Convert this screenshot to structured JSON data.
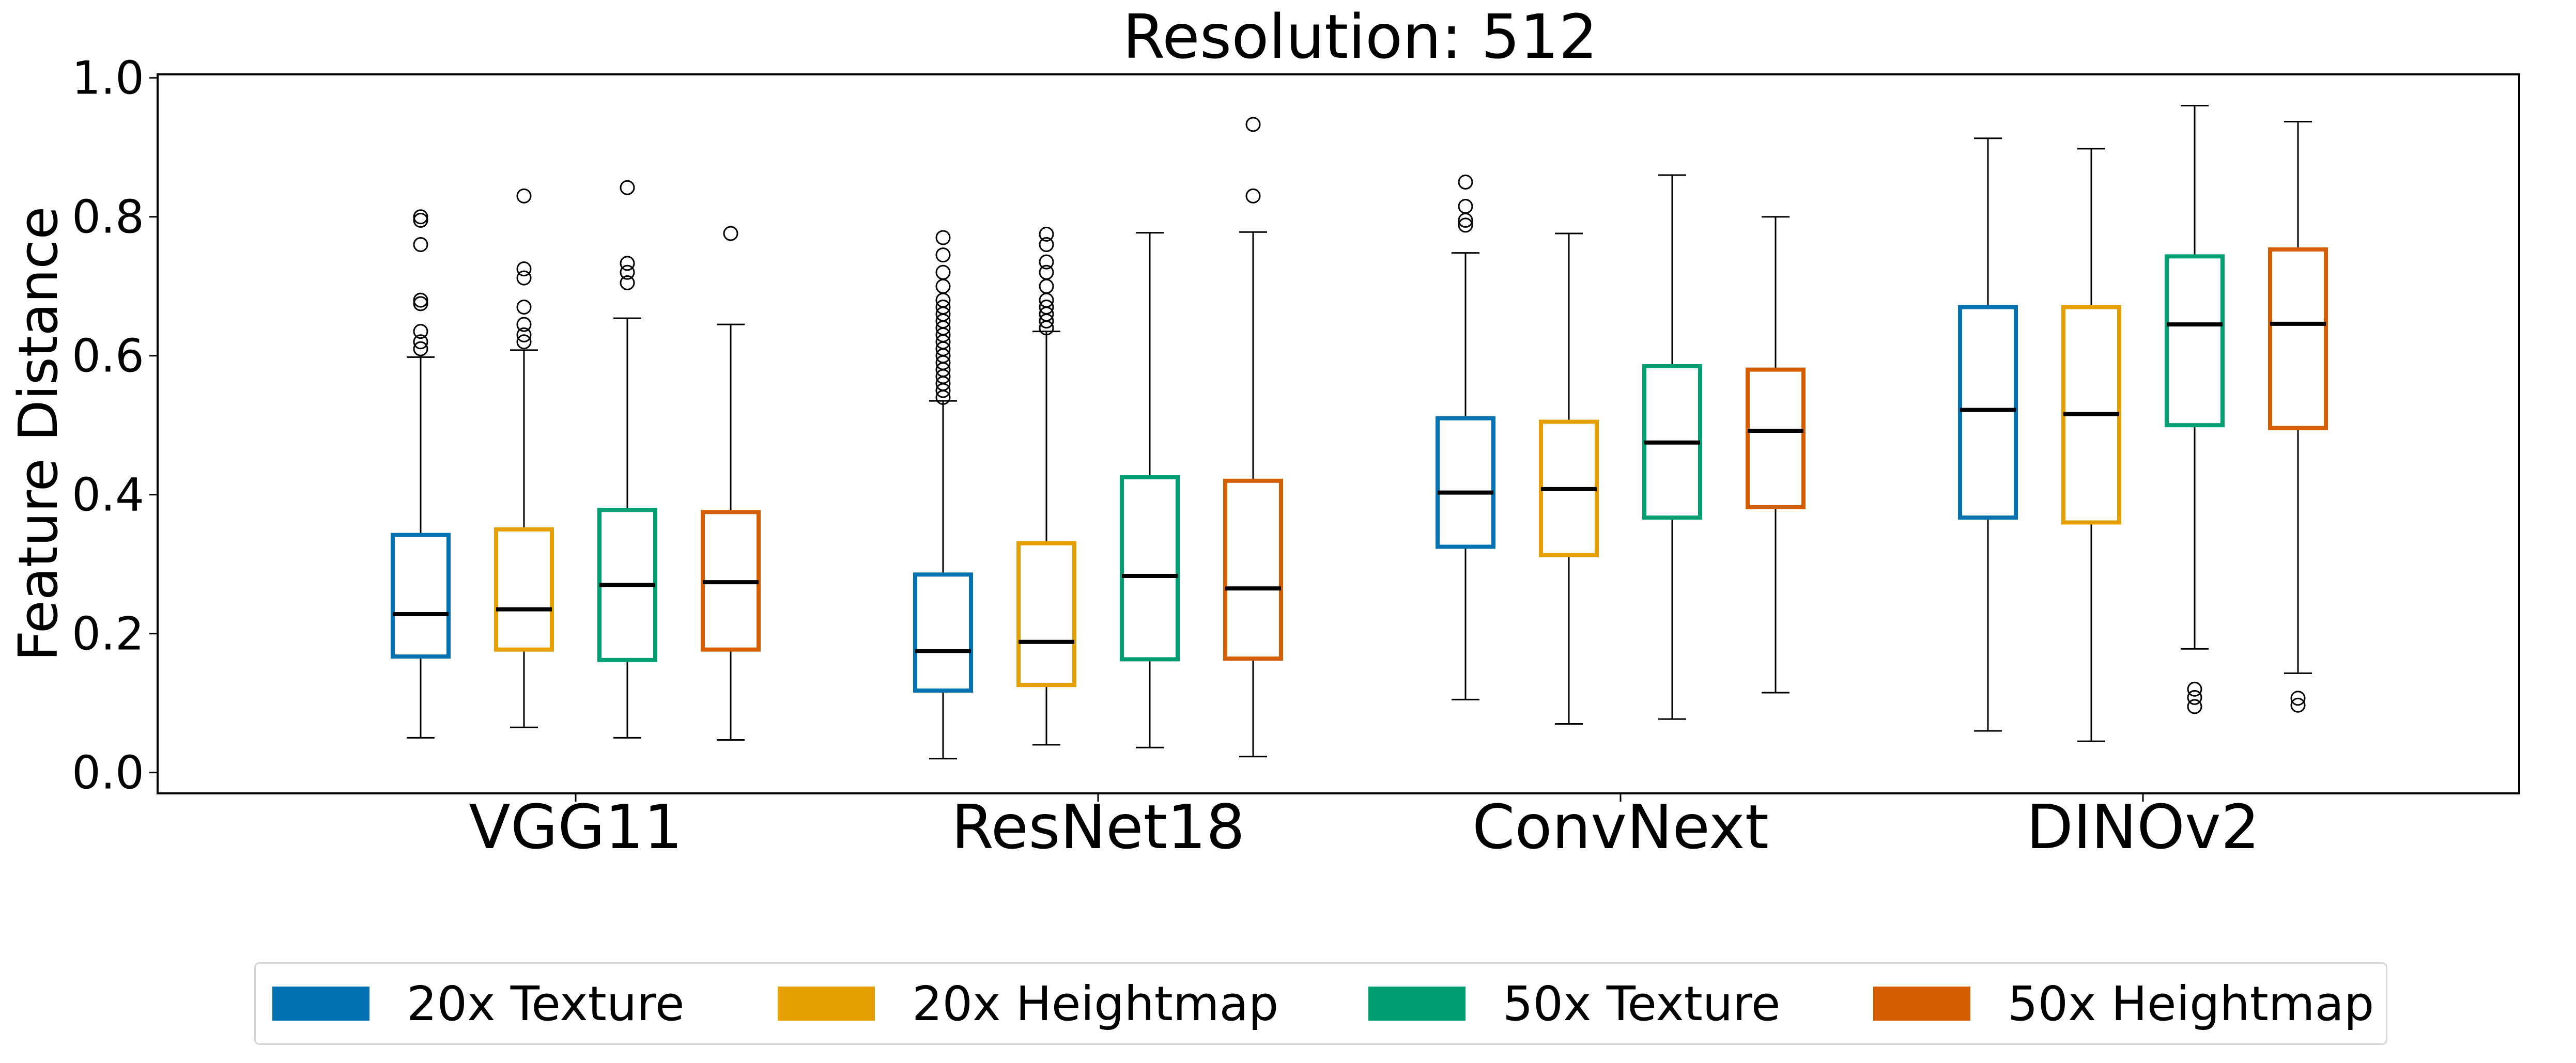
{
  "chart_data": {
    "type": "box",
    "title": "Resolution: 512",
    "xlabel": "",
    "ylabel": "Feature Distance",
    "ylim": [
      -0.03,
      1.005
    ],
    "yticks": [
      "0.0",
      "0.2",
      "0.4",
      "0.6",
      "0.8",
      "1.0"
    ],
    "categories": [
      "VGG11",
      "ResNet18",
      "ConvNext",
      "DINOv2"
    ],
    "legend_position": "bottom-center",
    "grid": false,
    "series": [
      {
        "name": "20x Texture",
        "color": "#0072B2",
        "boxes": [
          {
            "whisker_low": 0.05,
            "q1": 0.167,
            "median": 0.228,
            "q3": 0.342,
            "whisker_high": 0.598,
            "outliers": [
              0.61,
              0.62,
              0.635,
              0.675,
              0.68,
              0.76,
              0.795,
              0.8
            ]
          },
          {
            "whisker_low": 0.02,
            "q1": 0.118,
            "median": 0.175,
            "q3": 0.285,
            "whisker_high": 0.535,
            "outliers": [
              0.54,
              0.55,
              0.56,
              0.57,
              0.58,
              0.59,
              0.6,
              0.61,
              0.62,
              0.63,
              0.64,
              0.65,
              0.66,
              0.67,
              0.68,
              0.7,
              0.72,
              0.745,
              0.77
            ]
          },
          {
            "whisker_low": 0.105,
            "q1": 0.325,
            "median": 0.403,
            "q3": 0.51,
            "whisker_high": 0.748,
            "outliers": [
              0.788,
              0.795,
              0.815,
              0.85
            ]
          },
          {
            "whisker_low": 0.06,
            "q1": 0.367,
            "median": 0.522,
            "q3": 0.67,
            "whisker_high": 0.913,
            "outliers": []
          }
        ]
      },
      {
        "name": "20x Heightmap",
        "color": "#E69F00",
        "boxes": [
          {
            "whisker_low": 0.065,
            "q1": 0.177,
            "median": 0.235,
            "q3": 0.35,
            "whisker_high": 0.608,
            "outliers": [
              0.62,
              0.63,
              0.645,
              0.67,
              0.712,
              0.725,
              0.83
            ]
          },
          {
            "whisker_low": 0.04,
            "q1": 0.126,
            "median": 0.188,
            "q3": 0.33,
            "whisker_high": 0.635,
            "outliers": [
              0.64,
              0.65,
              0.66,
              0.67,
              0.68,
              0.7,
              0.72,
              0.735,
              0.76,
              0.775
            ]
          },
          {
            "whisker_low": 0.07,
            "q1": 0.313,
            "median": 0.408,
            "q3": 0.505,
            "whisker_high": 0.776,
            "outliers": []
          },
          {
            "whisker_low": 0.045,
            "q1": 0.36,
            "median": 0.516,
            "q3": 0.67,
            "whisker_high": 0.898,
            "outliers": []
          }
        ]
      },
      {
        "name": "50x Texture",
        "color": "#009E73",
        "boxes": [
          {
            "whisker_low": 0.05,
            "q1": 0.162,
            "median": 0.27,
            "q3": 0.378,
            "whisker_high": 0.654,
            "outliers": [
              0.705,
              0.72,
              0.733,
              0.842
            ]
          },
          {
            "whisker_low": 0.036,
            "q1": 0.163,
            "median": 0.283,
            "q3": 0.425,
            "whisker_high": 0.777,
            "outliers": []
          },
          {
            "whisker_low": 0.077,
            "q1": 0.367,
            "median": 0.475,
            "q3": 0.585,
            "whisker_high": 0.86,
            "outliers": []
          },
          {
            "whisker_low": 0.178,
            "q1": 0.5,
            "median": 0.645,
            "q3": 0.743,
            "whisker_high": 0.96,
            "outliers": [
              0.095,
              0.108,
              0.12
            ]
          }
        ]
      },
      {
        "name": "50x Heightmap",
        "color": "#D55E00",
        "boxes": [
          {
            "whisker_low": 0.047,
            "q1": 0.177,
            "median": 0.274,
            "q3": 0.375,
            "whisker_high": 0.645,
            "outliers": [
              0.776
            ]
          },
          {
            "whisker_low": 0.023,
            "q1": 0.164,
            "median": 0.265,
            "q3": 0.42,
            "whisker_high": 0.778,
            "outliers": [
              0.83,
              0.933
            ]
          },
          {
            "whisker_low": 0.115,
            "q1": 0.382,
            "median": 0.492,
            "q3": 0.58,
            "whisker_high": 0.8,
            "outliers": []
          },
          {
            "whisker_low": 0.143,
            "q1": 0.496,
            "median": 0.646,
            "q3": 0.753,
            "whisker_high": 0.937,
            "outliers": [
              0.097,
              0.107
            ]
          }
        ]
      }
    ]
  }
}
